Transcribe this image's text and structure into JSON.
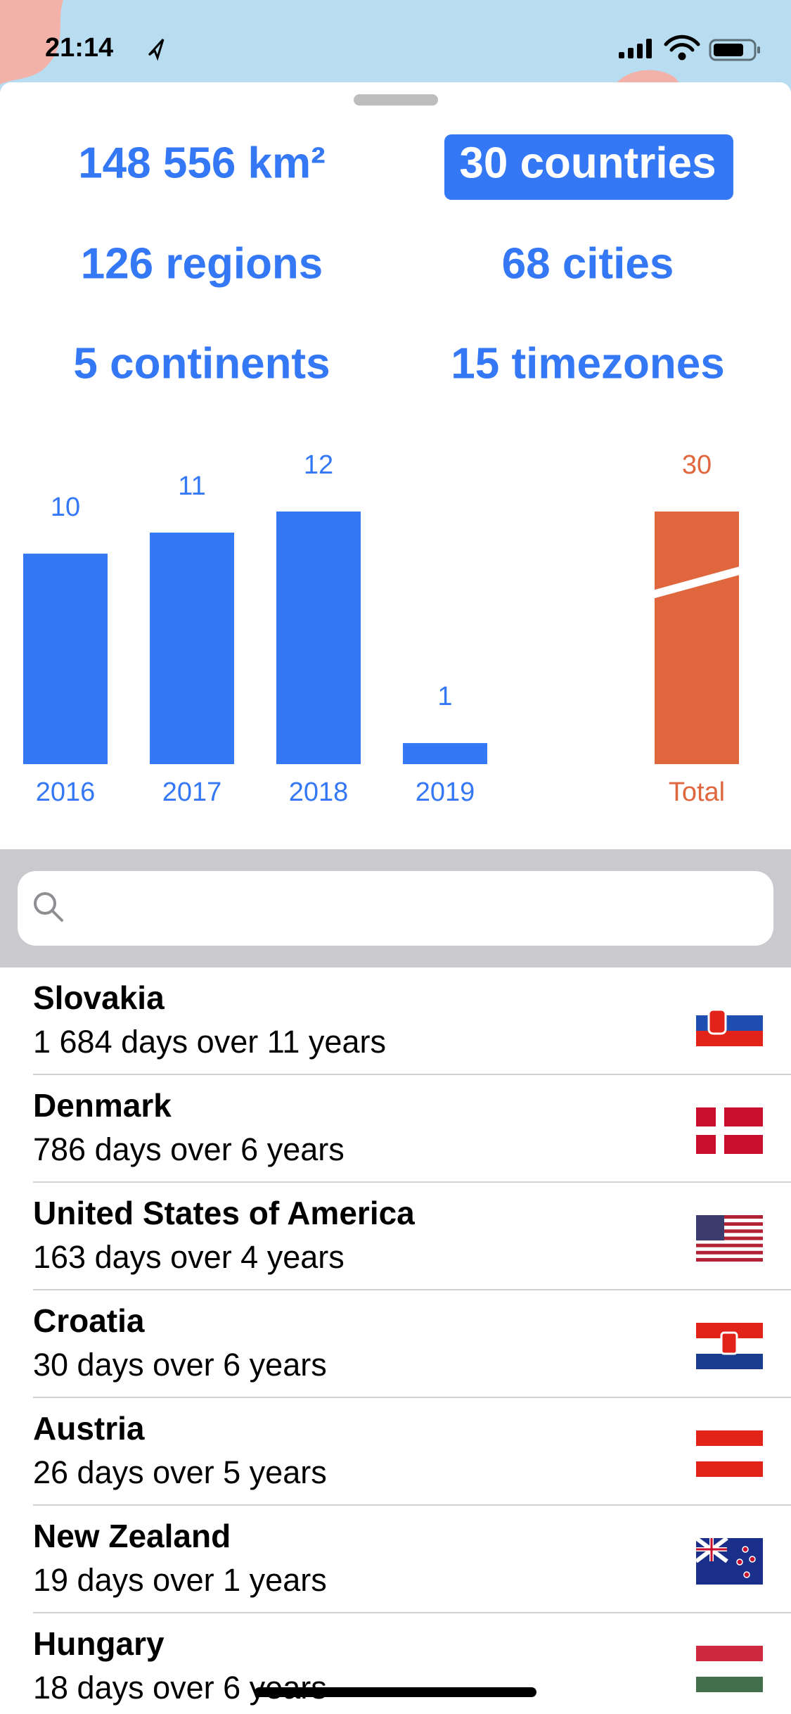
{
  "status_bar": {
    "time": "21:14"
  },
  "stats": [
    "148 556 km²",
    "30 countries",
    "126 regions",
    "68 cities",
    "5 continents",
    "15 timezones"
  ],
  "chart_data": {
    "type": "bar",
    "categories": [
      "2016",
      "2017",
      "2018",
      "2019",
      "Total"
    ],
    "values": [
      10,
      11,
      12,
      1,
      30
    ],
    "colors": [
      "#3478f6",
      "#3478f6",
      "#3478f6",
      "#3478f6",
      "#e0663e"
    ],
    "broken": [
      false,
      false,
      false,
      false,
      true
    ]
  },
  "list": [
    {
      "name": "Slovakia",
      "detail": "1 684 days over 11 years"
    },
    {
      "name": "Denmark",
      "detail": "786 days over 6 years"
    },
    {
      "name": "United States of America",
      "detail": "163 days over 4 years"
    },
    {
      "name": "Croatia",
      "detail": "30 days over 6 years"
    },
    {
      "name": "Austria",
      "detail": "26 days over 5 years"
    },
    {
      "name": "New Zealand",
      "detail": "19 days over 1 years"
    },
    {
      "name": "Hungary",
      "detail": "18 days over 6 years"
    }
  ]
}
